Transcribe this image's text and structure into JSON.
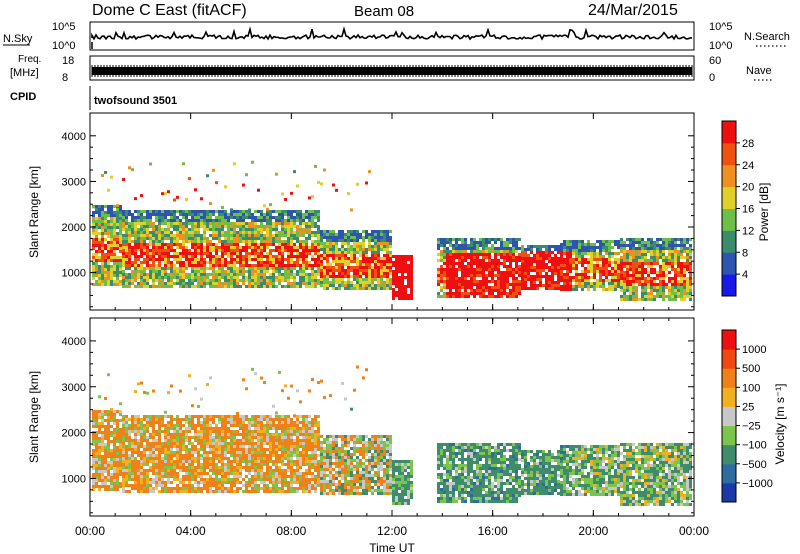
{
  "header": {
    "station": "Dome C East (fitACF)",
    "beam": "Beam 08",
    "date": "24/Mar/2015"
  },
  "noise_panel": {
    "left_label": "N.Sky",
    "right_label": "N.Search",
    "left_ticks": [
      "10^5",
      "10^0"
    ],
    "right_ticks": [
      "10^5",
      "10^0"
    ]
  },
  "freq_panel": {
    "left_label_1": "Freq.",
    "left_label_2": "[MHz]",
    "right_label": "Nave",
    "left_ticks": [
      "18",
      "8"
    ],
    "right_ticks": [
      "60",
      "0"
    ]
  },
  "cpid_panel": {
    "label": "CPID",
    "value": "twofsound 3501"
  },
  "chart_data": [
    {
      "type": "heatmap",
      "quantity": "power",
      "xlabel": "",
      "ylabel": "Slant Range [km]",
      "y_ticks": [
        "1000",
        "2000",
        "3000",
        "4000"
      ],
      "ylim": [
        180,
        4500
      ],
      "colorbar_label": "Power [dB]",
      "colorbar_ticks": [
        "4",
        "8",
        "12",
        "16",
        "20",
        "24",
        "28"
      ],
      "colors": [
        "#1818e8",
        "#2c54b0",
        "#3a8c6c",
        "#6cc048",
        "#e0d028",
        "#f09020",
        "#f05010",
        "#ee1010"
      ]
    },
    {
      "type": "heatmap",
      "quantity": "velocity",
      "xlabel": "Time UT",
      "ylabel": "Slant Range [km]",
      "y_ticks": [
        "1000",
        "2000",
        "3000",
        "4000"
      ],
      "ylim": [
        180,
        4500
      ],
      "x_ticks": [
        "00:00",
        "04:00",
        "08:00",
        "12:00",
        "16:00",
        "20:00",
        "00:00"
      ],
      "colorbar_label": "Velocity [m s⁻¹]",
      "colorbar_ticks": [
        "1000",
        "500",
        "100",
        "25",
        "−25",
        "−100",
        "−500",
        "−1000"
      ],
      "colors": [
        "#1a3aa8",
        "#2e6ca0",
        "#3f8c6c",
        "#7cc44c",
        "#c8c8c8",
        "#f0b020",
        "#f08018",
        "#f04810",
        "#ee1010"
      ]
    }
  ]
}
